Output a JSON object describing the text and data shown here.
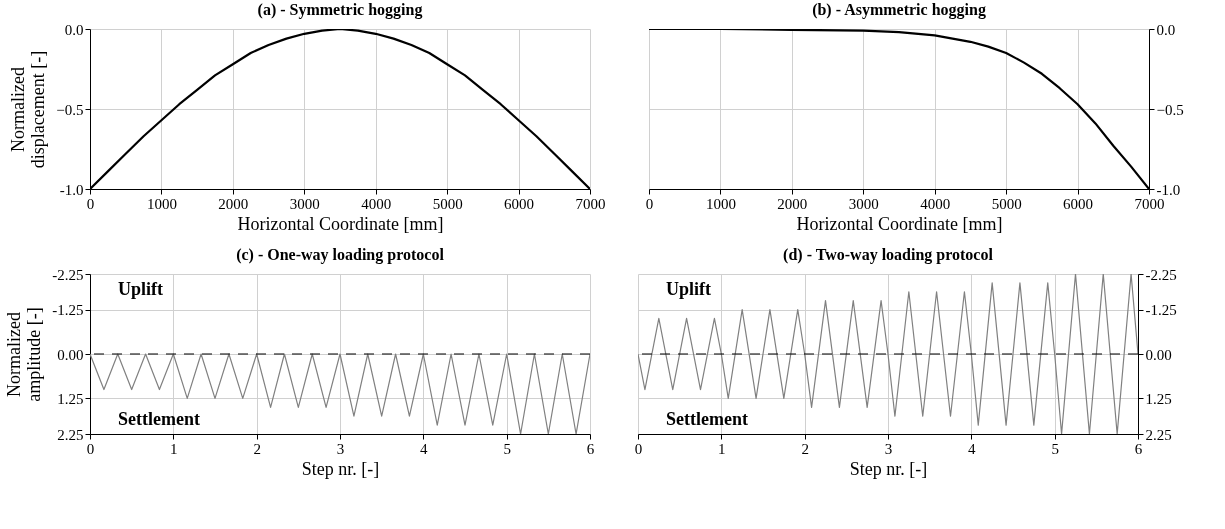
{
  "chart_data": [
    {
      "type": "line",
      "title": "(a) - Symmetric hogging",
      "xlabel": "Horizontal Coordinate [mm]",
      "ylabel": "Normalized displacement [-]",
      "series": [
        {
          "color": "#000000",
          "x": [
            0,
            250,
            500,
            750,
            1000,
            1250,
            1500,
            1750,
            2000,
            2250,
            2500,
            2750,
            3000,
            3250,
            3500,
            3750,
            4000,
            4250,
            4500,
            4750,
            5000,
            5250,
            5500,
            5750,
            6000,
            6250,
            6500,
            6750,
            7000
          ],
          "values": [
            -1,
            -0.89,
            -0.78,
            -0.67,
            -0.57,
            -0.47,
            -0.38,
            -0.29,
            -0.22,
            -0.15,
            -0.1,
            -0.06,
            -0.03,
            -0.01,
            0,
            -0.01,
            -0.03,
            -0.06,
            -0.1,
            -0.15,
            -0.22,
            -0.29,
            -0.38,
            -0.47,
            -0.57,
            -0.67,
            -0.78,
            -0.89,
            -1
          ]
        }
      ],
      "xlim": [
        0,
        7000
      ],
      "xticks": [
        0,
        1000,
        2000,
        3000,
        4000,
        5000,
        6000,
        7000
      ],
      "ylim": [
        -1,
        0
      ],
      "yticks": [
        {
          "value": -1,
          "label": "-1.0"
        },
        -0.5,
        {
          "value": 0,
          "label": "0.0"
        }
      ],
      "grid": true,
      "marker": "none",
      "line_style": "solid"
    },
    {
      "type": "line",
      "title": "(b) - Asymmetric hogging",
      "xlabel": "Horizontal Coordinate [mm]",
      "series": [
        {
          "color": "#000000",
          "x": [
            0,
            1000,
            2000,
            3000,
            3500,
            4000,
            4250,
            4500,
            4750,
            5000,
            5250,
            5500,
            5750,
            6000,
            6250,
            6500,
            6750,
            7000
          ],
          "values": [
            0,
            0,
            -0.005,
            -0.01,
            -0.02,
            -0.04,
            -0.06,
            -0.08,
            -0.11,
            -0.15,
            -0.21,
            -0.28,
            -0.37,
            -0.47,
            -0.59,
            -0.73,
            -0.86,
            -1
          ]
        }
      ],
      "xlim": [
        0,
        7000
      ],
      "xticks": [
        0,
        1000,
        2000,
        3000,
        4000,
        5000,
        6000,
        7000
      ],
      "ylim": [
        -1,
        0
      ],
      "yticks": [
        {
          "value": -1,
          "label": "-1.0"
        },
        -0.5,
        {
          "value": 0,
          "label": "0.0"
        }
      ],
      "grid": true,
      "marker": "none",
      "line_style": "solid"
    },
    {
      "type": "line",
      "title": "(c) - One-way loading protocol",
      "xlabel": "Step nr. [-]",
      "ylabel": "Normalized amplitude [-]",
      "series": [
        {
          "color": "#808080",
          "x": [
            0,
            0.167,
            0.333,
            0.5,
            0.667,
            0.833,
            1,
            1.167,
            1.333,
            1.5,
            1.667,
            1.833,
            2,
            2.167,
            2.333,
            2.5,
            2.667,
            2.833,
            3,
            3.167,
            3.333,
            3.5,
            3.667,
            3.833,
            4,
            4.167,
            4.333,
            4.5,
            4.667,
            4.833,
            5,
            5.167,
            5.333,
            5.5,
            5.667,
            5.833,
            6
          ],
          "values": [
            0,
            1,
            0,
            1,
            0,
            1,
            0,
            1.25,
            0,
            1.25,
            0,
            1.25,
            0,
            1.5,
            0,
            1.5,
            0,
            1.5,
            0,
            1.75,
            0,
            1.75,
            0,
            1.75,
            0,
            2,
            0,
            2,
            0,
            2,
            0,
            2.25,
            0,
            2.25,
            0,
            2.25,
            0
          ]
        }
      ],
      "xlim": [
        0,
        6
      ],
      "xticks": [
        0,
        1,
        2,
        3,
        4,
        5,
        6
      ],
      "ylim": [
        2.25,
        -2.25
      ],
      "yticks": [
        {
          "value": -2.25,
          "label": "-2.25"
        },
        {
          "value": -1.25,
          "label": "-1.25"
        },
        {
          "value": 0,
          "label": "0.00"
        },
        {
          "value": 1.25,
          "label": "1.25"
        },
        {
          "value": 2.25,
          "label": "2.25"
        }
      ],
      "ref_lines": [
        {
          "axis": "y",
          "value": 0,
          "color": "#000000",
          "line_style": "dashed"
        }
      ],
      "annotations": [
        "Uplift",
        "Settlement"
      ],
      "grid": true,
      "marker": "none",
      "line_style": "solid"
    },
    {
      "type": "line",
      "title": "(d) - Two-way loading protocol",
      "xlabel": "Step nr. [-]",
      "series": [
        {
          "color": "#808080",
          "x": [
            0,
            0.083,
            0.25,
            0.417,
            0.583,
            0.75,
            0.917,
            1,
            1.083,
            1.25,
            1.417,
            1.583,
            1.75,
            1.917,
            2,
            2.083,
            2.25,
            2.417,
            2.583,
            2.75,
            2.917,
            3,
            3.083,
            3.25,
            3.417,
            3.583,
            3.75,
            3.917,
            4,
            4.083,
            4.25,
            4.417,
            4.583,
            4.75,
            4.917,
            5,
            5.083,
            5.25,
            5.417,
            5.583,
            5.75,
            5.917,
            6
          ],
          "values": [
            0,
            1,
            -1,
            1,
            -1,
            1,
            -1,
            0,
            1.25,
            -1.25,
            1.25,
            -1.25,
            1.25,
            -1.25,
            0,
            1.5,
            -1.5,
            1.5,
            -1.5,
            1.5,
            -1.5,
            0,
            1.75,
            -1.75,
            1.75,
            -1.75,
            1.75,
            -1.75,
            0,
            2,
            -2,
            2,
            -2,
            2,
            -2,
            0,
            2.25,
            -2.25,
            2.25,
            -2.25,
            2.25,
            -2.25,
            0
          ]
        }
      ],
      "xlim": [
        0,
        6
      ],
      "xticks": [
        0,
        1,
        2,
        3,
        4,
        5,
        6
      ],
      "ylim": [
        2.25,
        -2.25
      ],
      "yticks": [
        {
          "value": -2.25,
          "label": "-2.25"
        },
        {
          "value": -1.25,
          "label": "-1.25"
        },
        {
          "value": 0,
          "label": "0.00"
        },
        {
          "value": 1.25,
          "label": "1.25"
        },
        {
          "value": 2.25,
          "label": "2.25"
        }
      ],
      "ref_lines": [
        {
          "axis": "y",
          "value": 0,
          "color": "#000000",
          "line_style": "dashed"
        }
      ],
      "annotations": [
        "Uplift",
        "Settlement"
      ],
      "grid": true,
      "marker": "none",
      "line_style": "solid"
    }
  ]
}
